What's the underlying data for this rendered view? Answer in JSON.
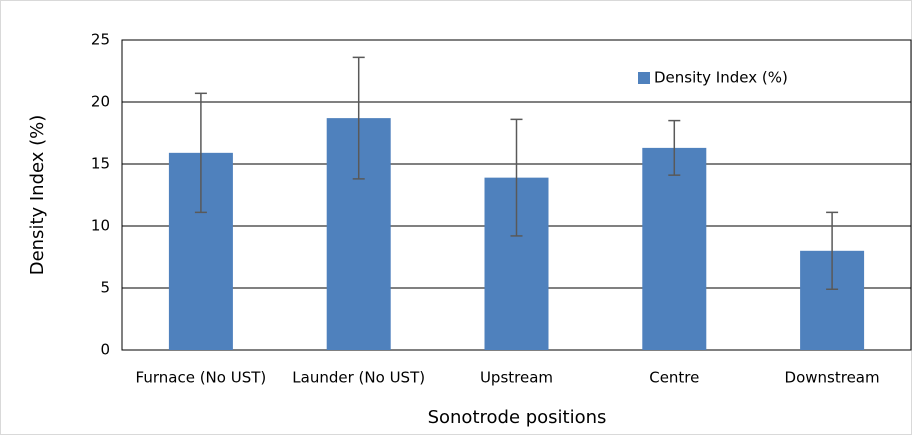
{
  "chart_data": {
    "type": "bar",
    "x_label": "Sonotrode positions",
    "y_label": "Density Index (%)",
    "categories": [
      "Furnace (No UST)",
      "Launder (No UST)",
      "Upstream",
      "Centre",
      "Downstream"
    ],
    "series": [
      {
        "name": "Density Index (%)",
        "color": "#4f81bd",
        "values": [
          15.9,
          18.7,
          13.9,
          16.3,
          8.0
        ],
        "errors": [
          4.8,
          4.9,
          4.7,
          2.2,
          3.1
        ]
      }
    ],
    "ylim": [
      0,
      25
    ],
    "yticks": [
      0,
      5,
      10,
      15,
      20,
      25
    ],
    "grid": true,
    "legend": "top-right"
  }
}
